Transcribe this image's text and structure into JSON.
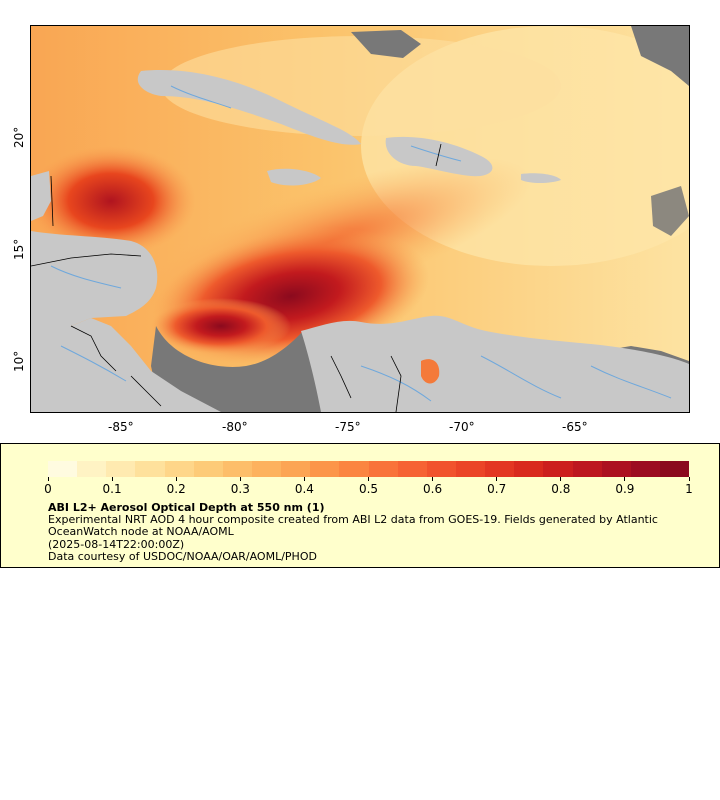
{
  "map": {
    "lon_ticks": [
      "-85°",
      "-80°",
      "-75°",
      "-70°",
      "-65°"
    ],
    "lat_ticks": [
      "20°",
      "15°",
      "10°"
    ],
    "colors": {
      "ocean_low": "#fde7a8",
      "ocean_mid": "#f9b95a",
      "aod_high": "#e8461e",
      "aod_max": "#8b0a1e",
      "land": "#c8c8c8",
      "no_data": "#787878",
      "rivers": "#6fa8dc",
      "borders": "#000000"
    }
  },
  "legend": {
    "colorbar_labels": [
      "0",
      "0.1",
      "0.2",
      "0.3",
      "0.4",
      "0.5",
      "0.6",
      "0.7",
      "0.8",
      "0.9",
      "1"
    ],
    "colorbar_colors": [
      "#fffbe0",
      "#fff3c4",
      "#ffeab0",
      "#fee19c",
      "#fed689",
      "#fdcb78",
      "#fdbe6a",
      "#fdb25e",
      "#fca554",
      "#fc9549",
      "#fb8541",
      "#f9733a",
      "#f66334",
      "#f1532d",
      "#eb4527",
      "#e33722",
      "#d92a1e",
      "#cc1f1e",
      "#bd171f",
      "#ac1120",
      "#9c0c21",
      "#8b0a1e"
    ],
    "title": "ABI L2+ Aerosol Optical Depth at 550 nm (1)",
    "description": "Experimental NRT AOD 4 hour composite created from ABI L2 data from GOES-19. Fields generated by Atlantic OceanWatch node at NOAA/AOML",
    "date": "(2025-08-14T22:00:00Z)",
    "credit": "Data courtesy of USDOC/NOAA/OAR/AOML/PHOD"
  }
}
